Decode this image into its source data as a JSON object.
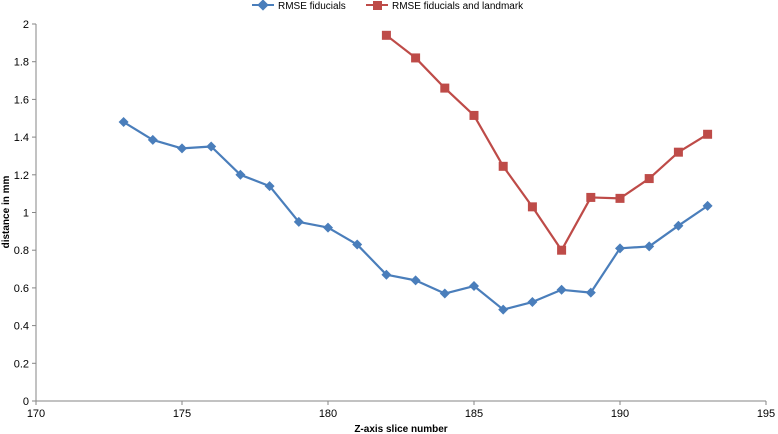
{
  "chart_data": {
    "type": "line",
    "xlabel": "Z-axis slice number",
    "ylabel": "distance in mm",
    "xlim": [
      170,
      195
    ],
    "ylim": [
      0,
      2
    ],
    "x_ticks": [
      170,
      175,
      180,
      185,
      190,
      195
    ],
    "y_ticks": [
      0,
      0.2,
      0.4,
      0.6,
      0.8,
      1,
      1.2,
      1.4,
      1.6,
      1.8,
      2
    ],
    "x_tick_labels": [
      "170",
      "175",
      "180",
      "185",
      "190",
      "195"
    ],
    "y_tick_labels": [
      "0",
      "0.2",
      "0.4",
      "0.6",
      "0.8",
      "1",
      "1.2",
      "1.4",
      "1.6",
      "1.8",
      "2"
    ],
    "grid": false,
    "legend_position": "top",
    "series": [
      {
        "name": "RMSE fiducials",
        "color": "#4A7EBB",
        "marker": "diamond",
        "x": [
          173,
          174,
          175,
          176,
          177,
          178,
          179,
          180,
          181,
          182,
          183,
          184,
          185,
          186,
          187,
          188,
          189,
          190,
          191,
          192,
          193
        ],
        "values": [
          1.48,
          1.385,
          1.34,
          1.35,
          1.2,
          1.14,
          0.95,
          0.92,
          0.83,
          0.67,
          0.64,
          0.57,
          0.61,
          0.485,
          0.525,
          0.59,
          0.575,
          0.81,
          0.82,
          0.93,
          1.035
        ]
      },
      {
        "name": "RMSE fiducials and landmark",
        "color": "#BE4B48",
        "marker": "square",
        "x": [
          182,
          183,
          184,
          185,
          186,
          187,
          188,
          189,
          190,
          191,
          192,
          193
        ],
        "values": [
          1.94,
          1.82,
          1.66,
          1.515,
          1.245,
          1.03,
          0.8,
          1.08,
          1.075,
          1.18,
          1.32,
          1.415
        ]
      }
    ]
  }
}
